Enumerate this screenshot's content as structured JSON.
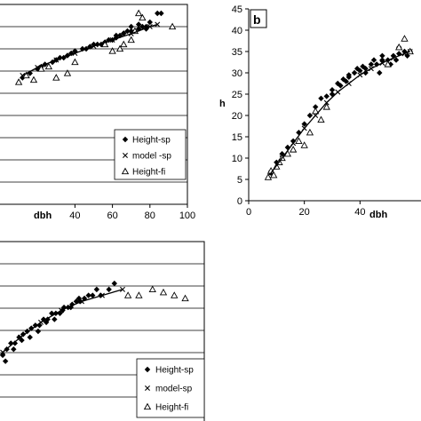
{
  "chart_data": [
    {
      "id": "panel-a",
      "type": "scatter",
      "panel_label": "",
      "xlabel": "dbh",
      "ylabel": "",
      "xlim": [
        0,
        100
      ],
      "x_ticks": [
        "40",
        "60",
        "80",
        "100"
      ],
      "grid": "horizontal",
      "legend": [
        "Height-sp",
        "model -sp",
        "Height-fi"
      ],
      "legend_position": "bottom-right",
      "series": [
        {
          "name": "Height-sp",
          "marker": "diamond",
          "x": [
            12,
            16,
            20,
            24,
            28,
            32,
            36,
            40,
            44,
            48,
            52,
            56,
            60,
            62,
            64,
            66,
            68,
            70,
            72,
            74,
            76,
            78,
            80,
            84,
            86,
            22,
            30,
            34,
            38,
            46,
            50,
            54,
            58,
            62,
            66,
            70,
            74,
            78
          ],
          "y": [
            28.5,
            29.5,
            30.5,
            31.5,
            32,
            33,
            33.5,
            34.5,
            35,
            35.5,
            36,
            36.5,
            37,
            37.5,
            38,
            38.5,
            39,
            40,
            39,
            40.5,
            40,
            39.5,
            41,
            43,
            43,
            31,
            32.5,
            33,
            34,
            35,
            36,
            36,
            37,
            38,
            38.5,
            39,
            39.5,
            40
          ]
        },
        {
          "name": "model -sp",
          "marker": "x",
          "x": [
            12,
            20,
            30,
            40,
            50,
            60,
            70,
            80,
            84
          ],
          "y": [
            29,
            30.8,
            32.5,
            34,
            35.6,
            37,
            38.4,
            40,
            40.5
          ]
        },
        {
          "name": "Height-fi",
          "marker": "triangle",
          "x": [
            10,
            14,
            18,
            22,
            26,
            30,
            36,
            40,
            56,
            60,
            64,
            66,
            70,
            72,
            74,
            76,
            92
          ],
          "y": [
            27.5,
            29,
            28,
            30.5,
            31,
            28.5,
            29.5,
            32,
            36,
            34.5,
            35,
            36,
            37,
            39,
            43,
            42,
            40
          ]
        }
      ]
    },
    {
      "id": "panel-b",
      "type": "scatter",
      "panel_label": "b",
      "xlabel": "dbh",
      "ylabel": "h",
      "xlim": [
        0,
        60
      ],
      "ylim": [
        0,
        45
      ],
      "x_ticks": [
        "0",
        "20",
        "40"
      ],
      "y_ticks": [
        "0",
        "5",
        "10",
        "15",
        "20",
        "25",
        "30",
        "35",
        "40",
        "45"
      ],
      "grid": "none",
      "series": [
        {
          "name": "Height-sp",
          "marker": "diamond",
          "x": [
            8,
            10,
            12,
            14,
            16,
            18,
            20,
            22,
            24,
            26,
            28,
            30,
            32,
            34,
            36,
            38,
            40,
            42,
            44,
            46,
            48,
            50,
            52,
            54,
            56,
            58,
            30,
            33,
            36,
            39,
            42,
            45,
            48,
            51,
            54,
            57,
            35,
            41,
            47,
            53
          ],
          "y": [
            6.5,
            9,
            11,
            12.5,
            14,
            16,
            18,
            20,
            22,
            24,
            24.5,
            26,
            27.5,
            28.5,
            29,
            30,
            30.5,
            31,
            32,
            32,
            33,
            33,
            34,
            34.5,
            35,
            35,
            25,
            27,
            29.5,
            31,
            30,
            33,
            34,
            32,
            36,
            34,
            28,
            31.5,
            30,
            33
          ]
        },
        {
          "name": "model-sp",
          "marker": "x",
          "x": [
            8,
            12,
            16,
            20,
            24,
            28,
            32,
            36,
            40,
            44,
            48,
            52,
            56,
            58
          ],
          "y": [
            6.5,
            10,
            13.5,
            17,
            20,
            23,
            25.5,
            27.5,
            29.5,
            31,
            32.3,
            33.5,
            34.5,
            35
          ]
        },
        {
          "name": "Height-fi",
          "marker": "triangle",
          "x": [
            7,
            8,
            9,
            10,
            11,
            12,
            14,
            16,
            18,
            20,
            22,
            24,
            26,
            28,
            50,
            54,
            56,
            58
          ],
          "y": [
            5.5,
            7,
            6,
            8,
            9,
            10,
            11,
            12,
            14,
            13,
            16,
            21,
            19,
            22,
            32,
            36,
            38,
            35
          ]
        }
      ]
    },
    {
      "id": "panel-c",
      "type": "scatter",
      "panel_label": "",
      "xlabel": "",
      "ylabel": "",
      "grid": "horizontal",
      "legend": [
        "Height-sp",
        "model-sp",
        "Height-fi"
      ],
      "legend_position": "bottom-right",
      "series": [
        {
          "name": "Height-sp",
          "marker": "diamond",
          "x": [
            2,
            5,
            8,
            11,
            14,
            17,
            20,
            23,
            26,
            29,
            32,
            35,
            38,
            41,
            44,
            47,
            50,
            53,
            56,
            59,
            62,
            65,
            68,
            71,
            74,
            80,
            84,
            4,
            10,
            16,
            22,
            28,
            34,
            40,
            46,
            52,
            58
          ],
          "y": [
            26,
            27,
            28,
            28,
            29,
            29.5,
            30,
            30.5,
            31,
            31,
            32,
            32,
            33,
            33,
            33,
            34,
            34,
            34.5,
            35,
            35,
            35.5,
            36,
            36,
            37,
            36,
            37,
            38,
            25,
            27,
            28.5,
            29,
            30,
            31.5,
            32,
            33.5,
            34,
            35.5
          ]
        },
        {
          "name": "model-sp",
          "marker": "x",
          "x": [
            2,
            15,
            30,
            45,
            60,
            75,
            90
          ],
          "y": [
            26.5,
            29,
            31.5,
            33.5,
            35,
            36,
            37
          ]
        },
        {
          "name": "Height-fi",
          "marker": "triangle",
          "x": [
            94,
            102,
            112,
            120,
            128,
            136
          ],
          "y": [
            36,
            36,
            37,
            36.5,
            36,
            35.5
          ]
        }
      ]
    }
  ]
}
